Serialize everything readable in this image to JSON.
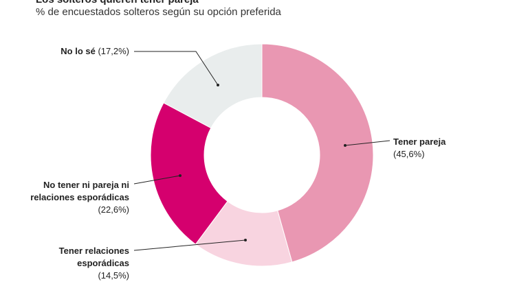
{
  "chart_data": {
    "type": "donut",
    "title": "Los solteros quieren tener pareja",
    "subtitle": "% de encuestados solteros según su opción preferida",
    "categories": [
      "Tener pareja",
      "Tener relaciones esporádicas",
      "No tener ni pareja ni relaciones esporádicas",
      "No lo sé"
    ],
    "values": [
      45.6,
      14.5,
      22.6,
      17.2
    ],
    "value_labels": [
      "(45,6%)",
      "(14,5%)",
      "(22,6%)",
      "(17,2%)"
    ],
    "colors": [
      "#e997b2",
      "#f8d4e0",
      "#d5006e",
      "#e9eded"
    ]
  }
}
